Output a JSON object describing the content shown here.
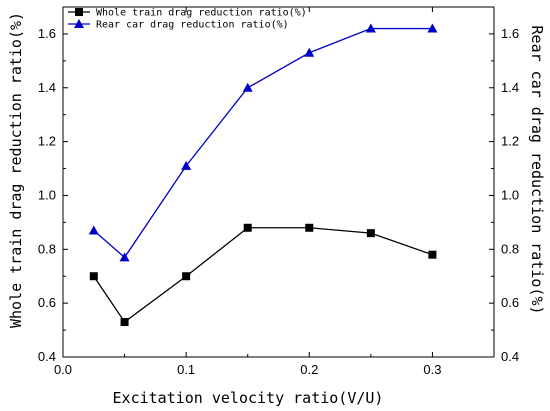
{
  "chart_data": {
    "type": "line",
    "xlabel": "Excitation velocity ratio(V/U)",
    "ylabel_left": "Whole train drag reduction ratio(%)",
    "ylabel_right": "Rear car drag reduction ratio(%)",
    "xlim": [
      0.0,
      0.35
    ],
    "ylim": [
      0.4,
      1.7
    ],
    "x_ticks": [
      "0.0",
      "0.1",
      "0.2",
      "0.3"
    ],
    "y_ticks": [
      "0.4",
      "0.6",
      "0.8",
      "1.0",
      "1.2",
      "1.4",
      "1.6"
    ],
    "grid": false,
    "legend_position": "top-left",
    "series": [
      {
        "name": "Whole train drag reduction ratio(%)",
        "color": "#000000",
        "marker": "square",
        "axis": "left",
        "x": [
          0.025,
          0.05,
          0.1,
          0.15,
          0.2,
          0.25,
          0.3
        ],
        "y": [
          0.7,
          0.53,
          0.7,
          0.88,
          0.88,
          0.86,
          0.78
        ]
      },
      {
        "name": "Rear car drag reduction ratio(%)",
        "color": "#0000cc",
        "marker": "triangle",
        "axis": "right",
        "x": [
          0.025,
          0.05,
          0.1,
          0.15,
          0.2,
          0.25,
          0.3
        ],
        "y": [
          0.87,
          0.77,
          1.11,
          1.4,
          1.53,
          1.62,
          1.62
        ]
      }
    ]
  }
}
